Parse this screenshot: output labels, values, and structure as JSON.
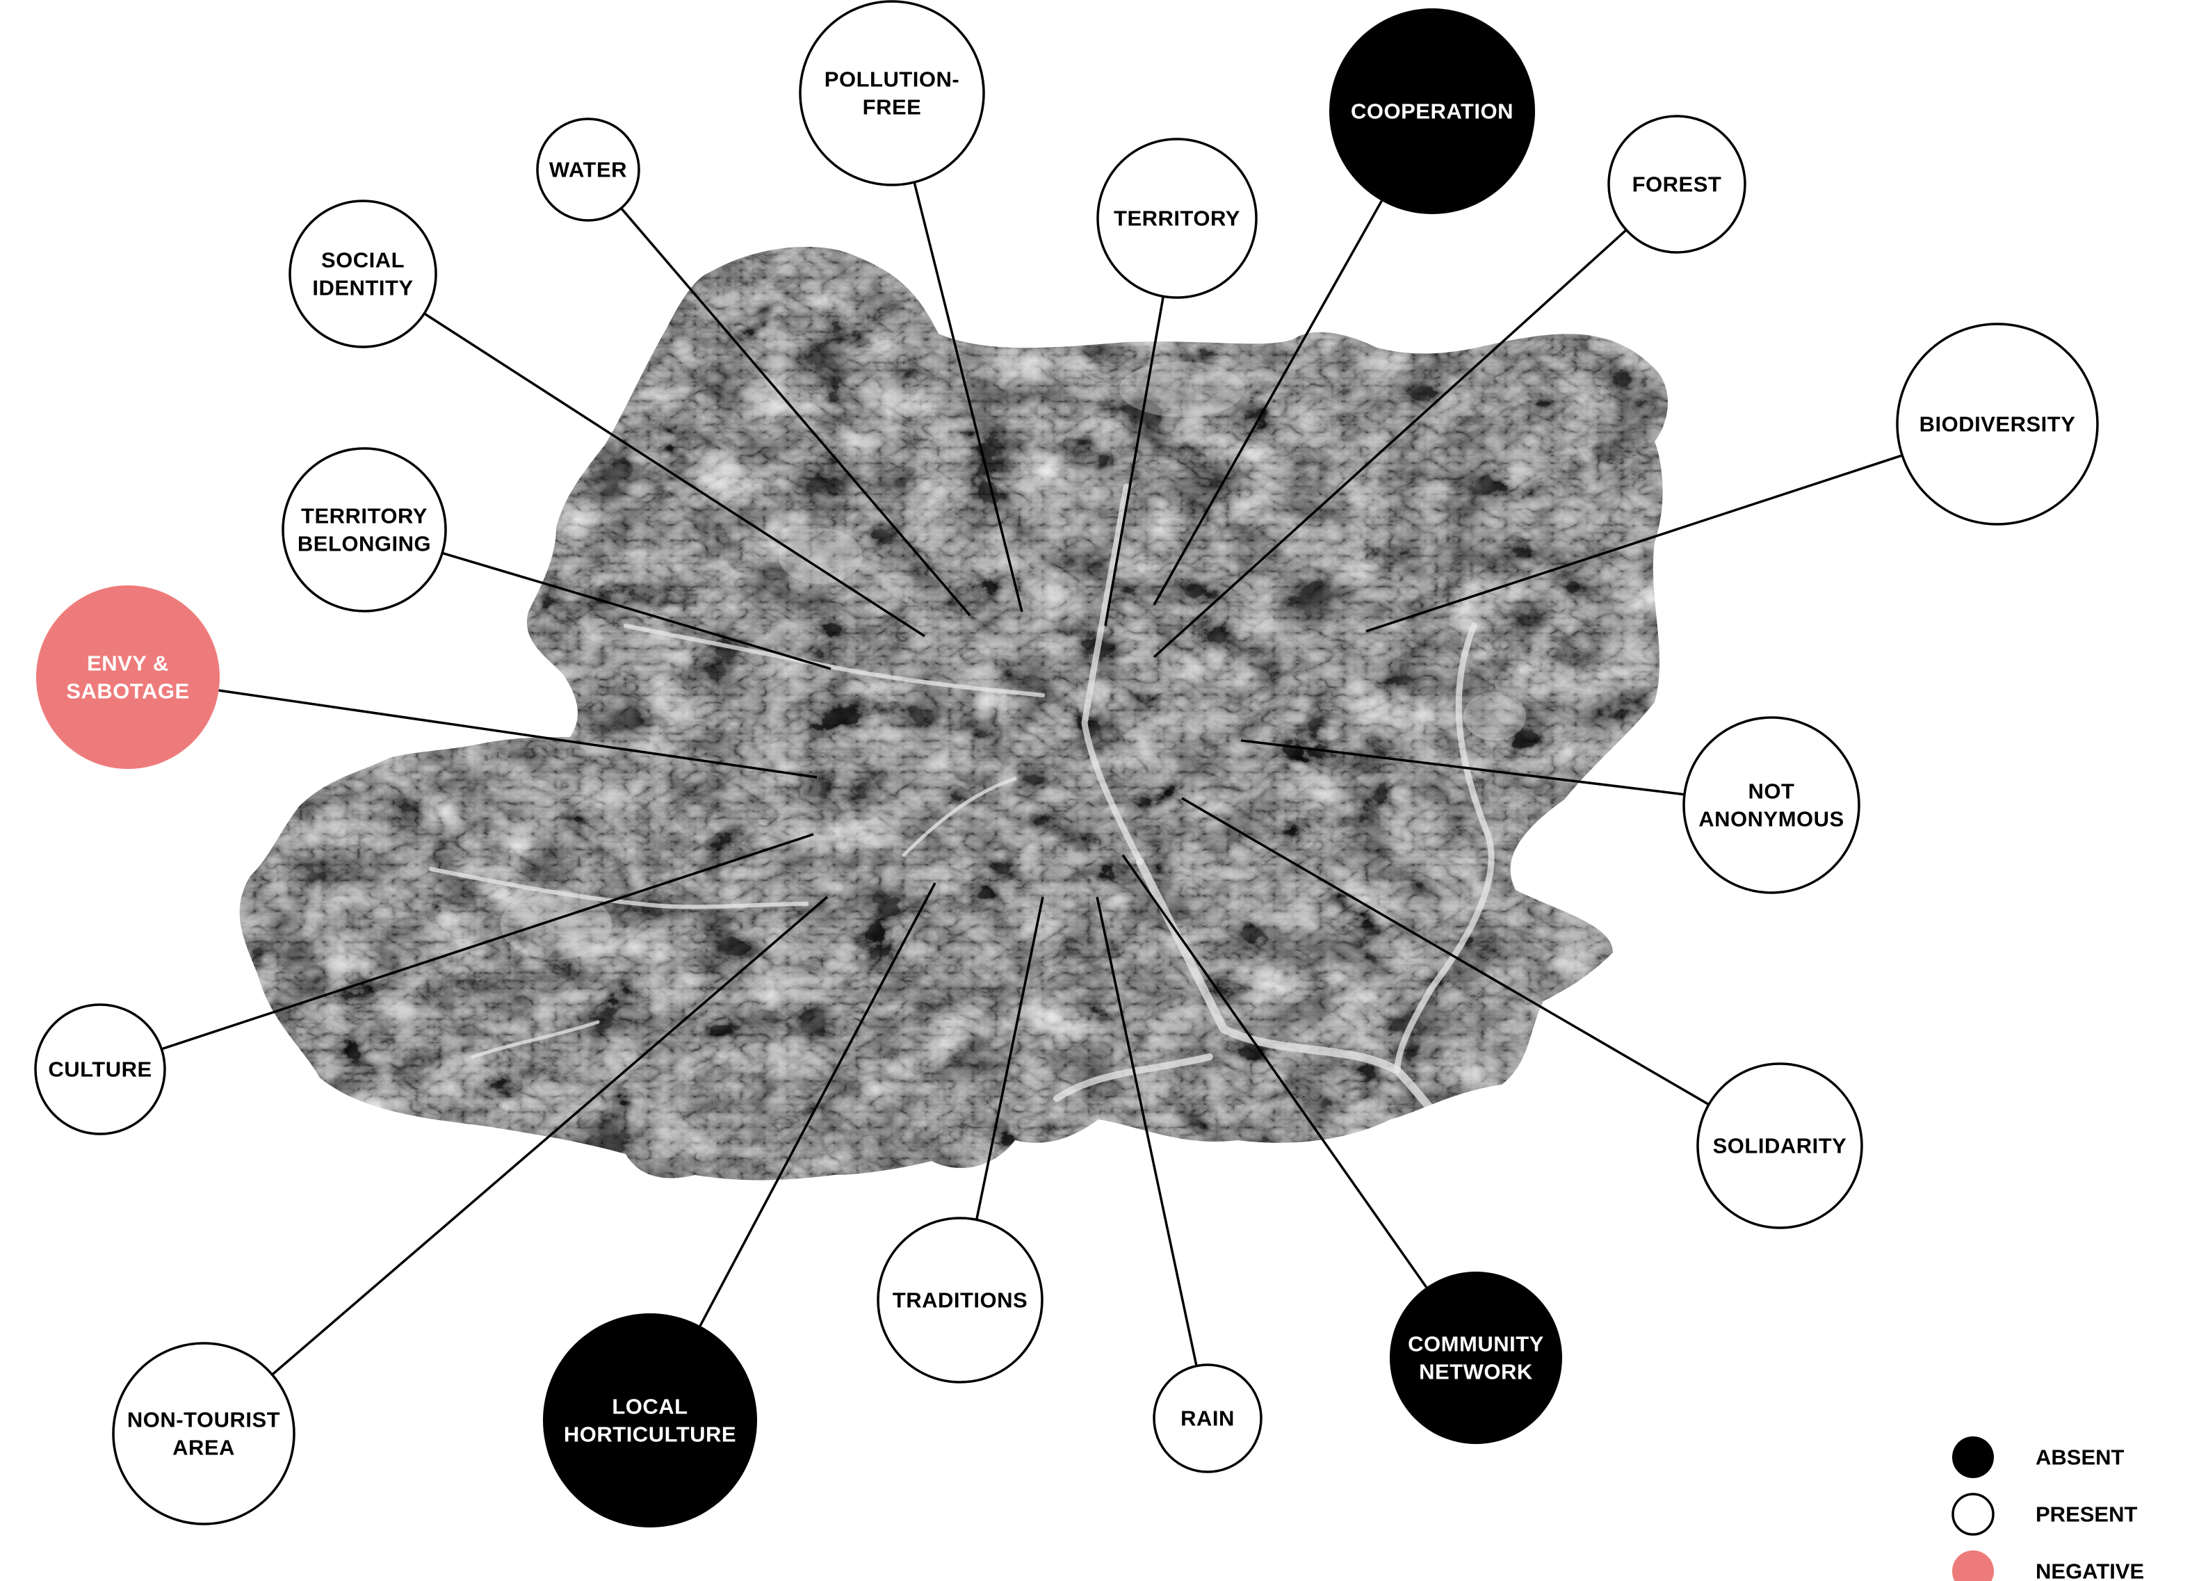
{
  "status_colors": {
    "absent": "#000000",
    "present": "#ffffff",
    "negative": "#ee7b7b"
  },
  "nodes": {
    "water": {
      "lines": [
        "WATER"
      ],
      "status": "present"
    },
    "pollution_free": {
      "lines": [
        "POLLUTION-",
        "FREE"
      ],
      "status": "present"
    },
    "cooperation": {
      "lines": [
        "COOPERATION"
      ],
      "status": "absent"
    },
    "forest": {
      "lines": [
        "FOREST"
      ],
      "status": "present"
    },
    "territory": {
      "lines": [
        "TERRITORY"
      ],
      "status": "present"
    },
    "social_identity": {
      "lines": [
        "SOCIAL",
        "IDENTITY"
      ],
      "status": "present"
    },
    "biodiversity": {
      "lines": [
        "BIODIVERSITY"
      ],
      "status": "present"
    },
    "territory_belonging": {
      "lines": [
        "TERRITORY",
        "BELONGING"
      ],
      "status": "present"
    },
    "envy_sabotage": {
      "lines": [
        "ENVY &",
        "SABOTAGE"
      ],
      "status": "negative"
    },
    "not_anonymous": {
      "lines": [
        "NOT",
        "ANONYMOUS"
      ],
      "status": "present"
    },
    "culture": {
      "lines": [
        "CULTURE"
      ],
      "status": "present"
    },
    "solidarity": {
      "lines": [
        "SOLIDARITY"
      ],
      "status": "present"
    },
    "non_tourist_area": {
      "lines": [
        "NON-TOURIST",
        "AREA"
      ],
      "status": "present"
    },
    "traditions": {
      "lines": [
        "TRADITIONS"
      ],
      "status": "present"
    },
    "community_network": {
      "lines": [
        "COMMUNITY",
        "NETWORK"
      ],
      "status": "absent"
    },
    "local_horticulture": {
      "lines": [
        "LOCAL",
        "HORTICULTURE"
      ],
      "status": "absent"
    },
    "rain": {
      "lines": [
        "RAIN"
      ],
      "status": "present"
    }
  },
  "legend": {
    "absent": "ABSENT",
    "present": "PRESENT",
    "negative": "NEGATIVE"
  }
}
